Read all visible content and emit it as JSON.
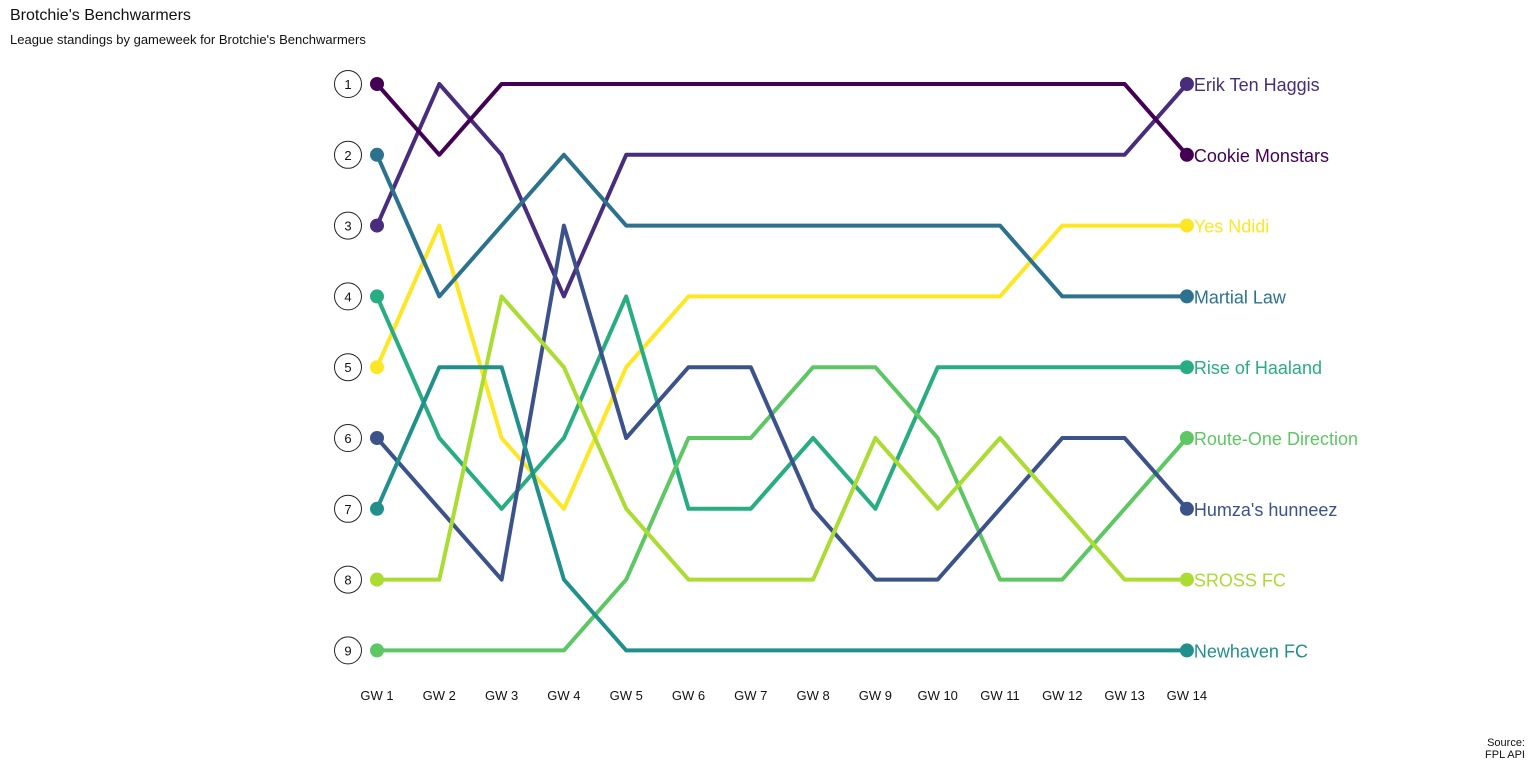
{
  "chart_data": {
    "type": "line",
    "title": "Brotchie's Benchwarmers",
    "subtitle": "League standings by gameweek for Brotchie's Benchwarmers",
    "caption": [
      "Source:",
      "FPL API"
    ],
    "categories": [
      "GW 1",
      "GW 2",
      "GW 3",
      "GW 4",
      "GW 5",
      "GW 6",
      "GW 7",
      "GW 8",
      "GW 9",
      "GW 10",
      "GW 11",
      "GW 12",
      "GW 13",
      "GW 14"
    ],
    "y_ticks": [
      1,
      2,
      3,
      4,
      5,
      6,
      7,
      8,
      9
    ],
    "y_reversed": true,
    "ylim": [
      1,
      9
    ],
    "grid": false,
    "legend": "direct labels at line ends",
    "series": [
      {
        "name": "Erik Ten Haggis",
        "color": "#472D7B",
        "values": [
          3,
          1,
          2,
          4,
          2,
          2,
          2,
          2,
          2,
          2,
          2,
          2,
          2,
          1
        ]
      },
      {
        "name": "Cookie Monstars",
        "color": "#440154",
        "values": [
          1,
          2,
          1,
          1,
          1,
          1,
          1,
          1,
          1,
          1,
          1,
          1,
          1,
          2
        ]
      },
      {
        "name": "Yes Ndidi",
        "color": "#FDE725",
        "values": [
          5,
          3,
          6,
          7,
          5,
          4,
          4,
          4,
          4,
          4,
          4,
          3,
          3,
          3
        ]
      },
      {
        "name": "Martial Law",
        "color": "#2C728E",
        "values": [
          2,
          4,
          3,
          2,
          3,
          3,
          3,
          3,
          3,
          3,
          3,
          4,
          4,
          4
        ]
      },
      {
        "name": "Rise of Haaland",
        "color": "#27AD81",
        "values": [
          4,
          6,
          7,
          6,
          4,
          7,
          7,
          6,
          7,
          5,
          5,
          5,
          5,
          5
        ]
      },
      {
        "name": "Route-One Direction",
        "color": "#5DC863",
        "values": [
          9,
          9,
          9,
          9,
          8,
          6,
          6,
          5,
          5,
          6,
          8,
          8,
          7,
          6
        ]
      },
      {
        "name": "Humza's hunneez",
        "color": "#3B528B",
        "values": [
          6,
          7,
          8,
          3,
          6,
          5,
          5,
          7,
          8,
          8,
          7,
          6,
          6,
          7
        ]
      },
      {
        "name": "SROSS FC",
        "color": "#AADC32",
        "values": [
          8,
          8,
          4,
          5,
          7,
          8,
          8,
          8,
          6,
          7,
          6,
          7,
          8,
          8
        ]
      },
      {
        "name": "Newhaven FC",
        "color": "#21908C",
        "values": [
          7,
          5,
          5,
          8,
          9,
          9,
          9,
          9,
          9,
          9,
          9,
          9,
          9,
          9
        ]
      }
    ]
  }
}
